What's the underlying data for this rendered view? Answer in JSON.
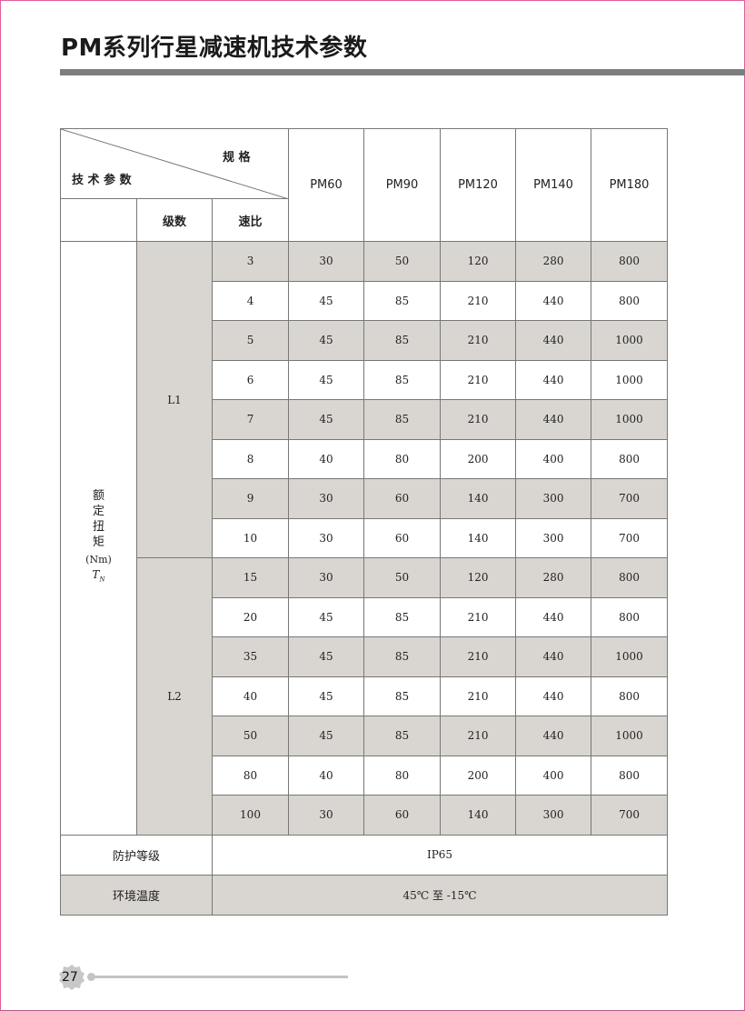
{
  "title": "PM系列行星减速机技术参数",
  "table": {
    "header": {
      "spec_label": "规 格",
      "param_label": "技 术 参 数",
      "stage_label": "级数",
      "ratio_label": "速比",
      "models": [
        "PM60",
        "PM90",
        "PM120",
        "PM140",
        "PM180"
      ]
    },
    "torque_label": {
      "lines": [
        "额",
        "定",
        "扭",
        "矩"
      ],
      "unit": "(Nm)",
      "symbol": "T",
      "symbol_sub": "N"
    },
    "groups": [
      {
        "stage": "L1",
        "rows": [
          {
            "ratio": "3",
            "values": [
              "30",
              "50",
              "120",
              "280",
              "800"
            ]
          },
          {
            "ratio": "4",
            "values": [
              "45",
              "85",
              "210",
              "440",
              "800"
            ]
          },
          {
            "ratio": "5",
            "values": [
              "45",
              "85",
              "210",
              "440",
              "1000"
            ]
          },
          {
            "ratio": "6",
            "values": [
              "45",
              "85",
              "210",
              "440",
              "1000"
            ]
          },
          {
            "ratio": "7",
            "values": [
              "45",
              "85",
              "210",
              "440",
              "1000"
            ]
          },
          {
            "ratio": "8",
            "values": [
              "40",
              "80",
              "200",
              "400",
              "800"
            ]
          },
          {
            "ratio": "9",
            "values": [
              "30",
              "60",
              "140",
              "300",
              "700"
            ]
          },
          {
            "ratio": "10",
            "values": [
              "30",
              "60",
              "140",
              "300",
              "700"
            ]
          }
        ]
      },
      {
        "stage": "L2",
        "rows": [
          {
            "ratio": "15",
            "values": [
              "30",
              "50",
              "120",
              "280",
              "800"
            ]
          },
          {
            "ratio": "20",
            "values": [
              "45",
              "85",
              "210",
              "440",
              "800"
            ]
          },
          {
            "ratio": "35",
            "values": [
              "45",
              "85",
              "210",
              "440",
              "1000"
            ]
          },
          {
            "ratio": "40",
            "values": [
              "45",
              "85",
              "210",
              "440",
              "800"
            ]
          },
          {
            "ratio": "50",
            "values": [
              "45",
              "85",
              "210",
              "440",
              "1000"
            ]
          },
          {
            "ratio": "80",
            "values": [
              "40",
              "80",
              "200",
              "400",
              "800"
            ]
          },
          {
            "ratio": "100",
            "values": [
              "30",
              "60",
              "140",
              "300",
              "700"
            ]
          }
        ]
      }
    ],
    "protection": {
      "label": "防护等级",
      "value": "IP65"
    },
    "temperature": {
      "label": "环境温度",
      "value": "45℃ 至 -15℃"
    }
  },
  "footer": {
    "page_number": "27"
  },
  "colors": {
    "shade": "#d9d6d1",
    "title_bar": "#7d7d7d",
    "border": "#e0609a"
  }
}
